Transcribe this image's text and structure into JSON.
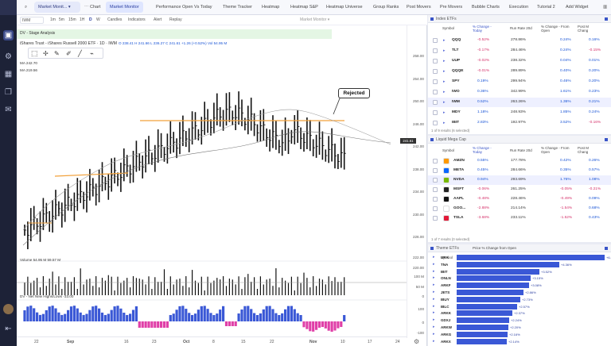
{
  "topbar": {
    "layout_name": "Market Monit...",
    "tabs": [
      "Chart",
      "Market Monitor",
      "Performance Open Vs Today",
      "Theme Tracker",
      "Heatmap",
      "Heatmap S&P",
      "Heatmap Universe",
      "Group Ranks",
      "Post Movers",
      "Pre Movers",
      "Bubble Charts",
      "Execution",
      "Tutorial 2"
    ],
    "add_widget": "Add Widget"
  },
  "chart": {
    "symbol_box": "IWM",
    "intervals": [
      "1m",
      "5m",
      "15m",
      "1H",
      "D",
      "W"
    ],
    "type_label": "Candles",
    "indicators_label": "Indicators",
    "alert_label": "Alert",
    "replay_label": "Replay",
    "ctrl_label": "Market Monitor",
    "study_label": "DV - Stage Analysis",
    "title": "iShares Trust - iShares Russell 2000 ETF · 1D · IWM",
    "ohlc": "O 238.41  H 241.66  L 236.27  C 241.61  +1.26 (+0.52%)  Vol 54.95 M",
    "ma1": "MA   242.70",
    "ma2": "MA   219.56",
    "annotation": "Rejected",
    "price_tag": "241.61",
    "price_labels": [
      "258.00",
      "254.00",
      "250.00",
      "246.00",
      "242.00",
      "238.00",
      "234.00",
      "230.00",
      "226.00",
      "222.00",
      "220.00"
    ],
    "volume_label": "Volume   54.95 M   59.57 M",
    "volume_axis": [
      "100 M",
      "50 M",
      "0"
    ],
    "hl_label": "DV - Net New Highs/Lows   -33.00",
    "hl_axis": [
      "100",
      "0",
      "-100"
    ],
    "x_labels": [
      "22",
      "Sep",
      "16",
      "23",
      "Oct",
      "8",
      "15",
      "22",
      "Nov",
      "10",
      "17",
      "24"
    ]
  },
  "index_etfs": {
    "title": "Index ETFs",
    "columns": [
      "Symbol",
      "% Change - Today",
      "Run Rate 20d",
      "% Change - From Open",
      "Post M Chang"
    ],
    "rows": [
      {
        "sym": "QQQ",
        "chg": "-0.52%",
        "rr": "278.86%",
        "open": "0.24%",
        "post": "0.16%"
      },
      {
        "sym": "TLT",
        "chg": "-0.17%",
        "rr": "284.46%",
        "open": "0.24%",
        "post": "-0.15%"
      },
      {
        "sym": "UUP",
        "chg": "-0.02%",
        "rr": "238.32%",
        "open": "0.04%",
        "post": "0.01%"
      },
      {
        "sym": "QQQE",
        "chg": "-0.01%",
        "rr": "289.89%",
        "open": "0.40%",
        "post": "0.20%"
      },
      {
        "sym": "SPY",
        "chg": "0.19%",
        "rr": "299.94%",
        "open": "0.46%",
        "post": "0.20%"
      },
      {
        "sym": "IWO",
        "chg": "0.36%",
        "rr": "342.99%",
        "open": "1.61%",
        "post": "0.23%"
      },
      {
        "sym": "IWM",
        "chg": "0.52%",
        "rr": "263.26%",
        "open": "1.36%",
        "post": "0.21%"
      },
      {
        "sym": "MDY",
        "chg": "1.18%",
        "rr": "248.93%",
        "open": "1.85%",
        "post": "0.24%"
      },
      {
        "sym": "IBIT",
        "chg": "2.83%",
        "rr": "192.97%",
        "open": "3.52%",
        "post": "-0.16%"
      }
    ],
    "footnote": "1 of 9 results (6 selected)"
  },
  "mega_cap": {
    "title": "Liquid Mega Cap",
    "columns": [
      "Symbol",
      "% Change - Today",
      "Run Rate 20d",
      "% Change - From Open",
      "Post M Chang"
    ],
    "rows": [
      {
        "sym": "AMZN",
        "chg": "0.55%",
        "rr": "177.78%",
        "open": "0.42%",
        "post": "0.26%",
        "logo": "#ff9900"
      },
      {
        "sym": "META",
        "chg": "0.45%",
        "rr": "284.66%",
        "open": "0.35%",
        "post": "0.57%",
        "logo": "#0866ff"
      },
      {
        "sym": "NVDA",
        "chg": "0.94%",
        "rr": "293.69%",
        "open": "1.76%",
        "post": "1.08%",
        "logo": "#76b900"
      },
      {
        "sym": "MSFT",
        "chg": "-0.06%",
        "rr": "261.25%",
        "open": "-0.05%",
        "post": "-0.21%",
        "logo": "#222222"
      },
      {
        "sym": "AAPL",
        "chg": "-0.48%",
        "rr": "228.46%",
        "open": "-0.49%",
        "post": "0.09%",
        "logo": "#111111"
      },
      {
        "sym": "GOO...",
        "chg": "-2.88%",
        "rr": "214.14%",
        "open": "-1.54%",
        "post": "0.68%",
        "logo": "#ffffff"
      },
      {
        "sym": "TSLA",
        "chg": "-3.68%",
        "rr": "233.11%",
        "open": "-1.52%",
        "post": "0.43%",
        "logo": "#e31937"
      }
    ],
    "footnote": "1 of 7 results (0 selected)"
  },
  "theme": {
    "title": "Theme ETFs",
    "col_symbol": "Symbol",
    "col_price": "Price % Change from Open",
    "rows": [
      {
        "sym": "URA",
        "pct": "+6.31%",
        "v": 6.31
      },
      {
        "sym": "TNA",
        "pct": "+4.36%",
        "v": 4.36
      },
      {
        "sym": "IBIT",
        "pct": "+3.52%",
        "v": 3.52
      },
      {
        "sym": "ONLN",
        "pct": "+3.15%",
        "v": 3.15
      },
      {
        "sym": "ARKF",
        "pct": "+3.08%",
        "v": 3.08
      },
      {
        "sym": "JETS",
        "pct": "+2.86%",
        "v": 2.86
      },
      {
        "sym": "IBUY",
        "pct": "+2.73%",
        "v": 2.73
      },
      {
        "sym": "IBLC",
        "pct": "+2.57%",
        "v": 2.57
      },
      {
        "sym": "ARKK",
        "pct": "+2.37%",
        "v": 2.37
      },
      {
        "sym": "GDXJ",
        "pct": "+2.24%",
        "v": 2.24
      },
      {
        "sym": "ARKW",
        "pct": "+2.20%",
        "v": 2.2
      },
      {
        "sym": "ARKG",
        "pct": "+2.16%",
        "v": 2.16
      },
      {
        "sym": "ARKX",
        "pct": "+2.14%",
        "v": 2.14
      }
    ]
  }
}
